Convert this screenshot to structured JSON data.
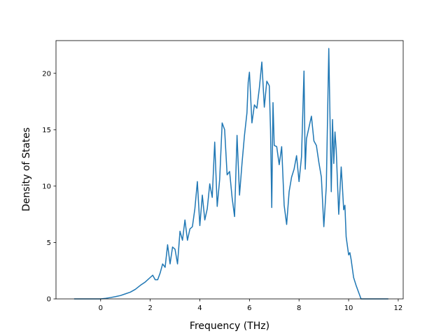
{
  "chart_data": {
    "type": "line",
    "title": "",
    "xlabel": "Frequency (THz)",
    "ylabel": "Density of States",
    "xlim": [
      -1.8,
      12.2
    ],
    "ylim": [
      0,
      22.9
    ],
    "xticks": [
      0,
      2,
      4,
      6,
      8,
      10,
      12
    ],
    "yticks": [
      0,
      5,
      10,
      15,
      20
    ],
    "grid": false,
    "legend": "none",
    "series": [
      {
        "color": "#1f77b4",
        "x": [
          -1.07,
          -0.6,
          -0.2,
          0.0,
          0.2,
          0.4,
          0.6,
          0.8,
          1.0,
          1.2,
          1.4,
          1.6,
          1.8,
          2.0,
          2.1,
          2.2,
          2.3,
          2.4,
          2.5,
          2.6,
          2.7,
          2.8,
          2.9,
          3.0,
          3.1,
          3.2,
          3.3,
          3.4,
          3.5,
          3.6,
          3.7,
          3.8,
          3.9,
          4.0,
          4.1,
          4.2,
          4.3,
          4.4,
          4.5,
          4.6,
          4.7,
          4.8,
          4.9,
          5.0,
          5.1,
          5.2,
          5.3,
          5.4,
          5.5,
          5.6,
          5.7,
          5.8,
          5.9,
          5.95,
          6.0,
          6.1,
          6.2,
          6.3,
          6.4,
          6.5,
          6.6,
          6.7,
          6.8,
          6.85,
          6.9,
          6.95,
          7.0,
          7.1,
          7.2,
          7.3,
          7.4,
          7.5,
          7.6,
          7.7,
          7.8,
          7.9,
          8.0,
          8.1,
          8.2,
          8.25,
          8.3,
          8.4,
          8.5,
          8.6,
          8.7,
          8.8,
          8.9,
          9.0,
          9.1,
          9.2,
          9.3,
          9.35,
          9.4,
          9.45,
          9.5,
          9.6,
          9.7,
          9.75,
          9.8,
          9.85,
          9.9,
          10.0,
          10.05,
          10.1,
          10.2,
          10.3,
          10.4,
          10.5,
          10.6,
          10.8,
          11.2,
          11.6
        ],
        "y": [
          0,
          0,
          0,
          0,
          0.05,
          0.12,
          0.2,
          0.3,
          0.45,
          0.6,
          0.85,
          1.2,
          1.5,
          1.9,
          2.1,
          1.7,
          1.7,
          2.3,
          3.1,
          2.8,
          4.8,
          3.1,
          4.6,
          4.4,
          3.1,
          6.0,
          5.2,
          7.0,
          5.2,
          6.2,
          6.4,
          8.0,
          10.4,
          6.5,
          9.2,
          7.0,
          8.0,
          10.2,
          9.0,
          13.9,
          8.2,
          10.6,
          15.6,
          15.0,
          11.0,
          11.3,
          9.0,
          7.3,
          14.5,
          9.2,
          12.0,
          14.5,
          16.5,
          19.2,
          20.1,
          15.6,
          17.2,
          16.9,
          18.7,
          21.0,
          17.0,
          19.3,
          18.9,
          15.0,
          8.1,
          17.4,
          13.6,
          13.5,
          11.9,
          13.5,
          8.3,
          6.6,
          9.5,
          10.8,
          11.5,
          12.7,
          10.4,
          12.6,
          20.2,
          11.5,
          14.2,
          15.2,
          16.2,
          14.0,
          13.6,
          12.1,
          10.8,
          6.4,
          10.0,
          22.2,
          9.5,
          15.9,
          12.0,
          14.8,
          13.2,
          7.5,
          11.7,
          9.9,
          7.9,
          8.3,
          5.5,
          3.9,
          4.1,
          3.5,
          1.9,
          1.2,
          0.6,
          0.0,
          0,
          0,
          0,
          0
        ]
      }
    ]
  }
}
